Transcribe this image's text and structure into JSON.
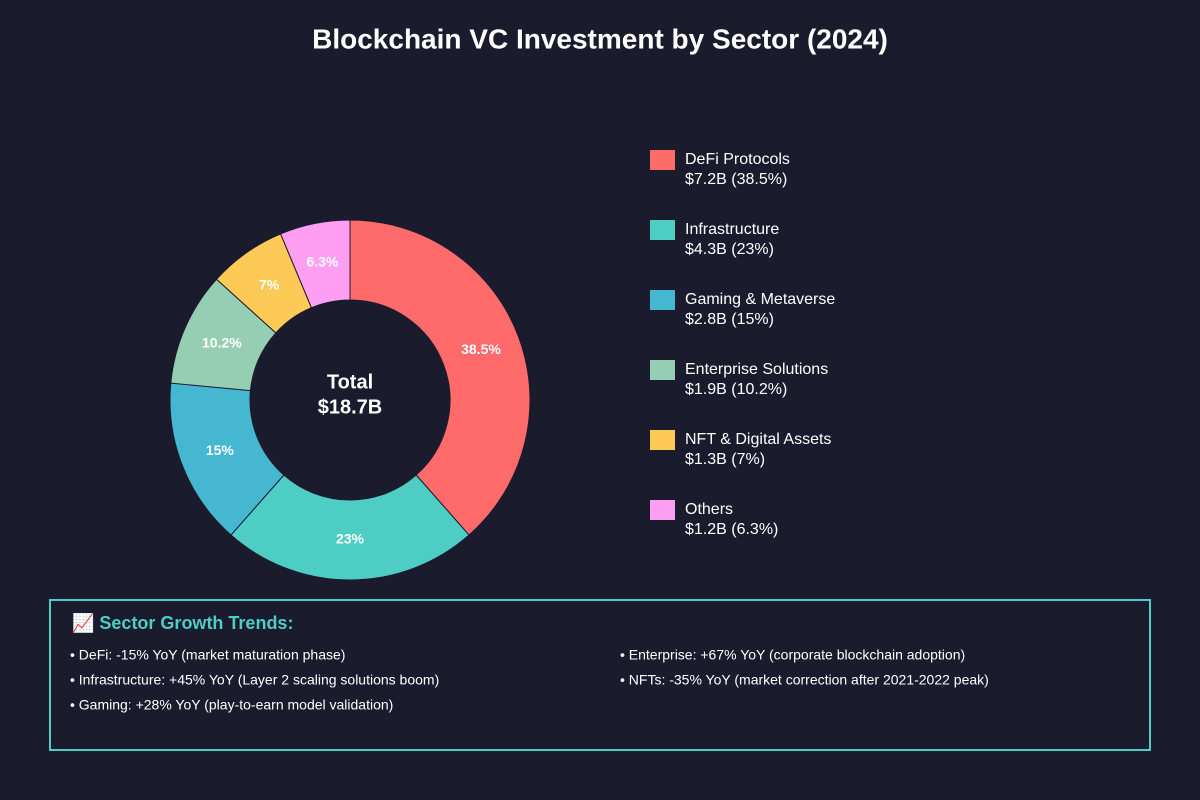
{
  "chart_data": {
    "type": "donut",
    "title": "Blockchain VC Investment by Sector (2024)",
    "categories": [
      "DeFi Protocols",
      "Infrastructure",
      "Gaming & Metaverse",
      "Enterprise Solutions",
      "NFT & Digital Assets",
      "Others"
    ],
    "values": [
      38.5,
      23,
      15,
      10.2,
      7,
      6.3
    ],
    "value_labels": [
      "38.5%",
      "23%",
      "15%",
      "10.2%",
      "7%",
      "6.3%"
    ],
    "legend_labels": [
      "$7.2B (38.5%)",
      "$4.3B (23%)",
      "$2.8B (15%)",
      "$1.9B (10.2%)",
      "$1.3B (7%)",
      "$1.2B (6.3%)"
    ],
    "colors": [
      "#ff6b6b",
      "#4ecdc4",
      "#45b7d1",
      "#96ceb4",
      "#feca57",
      "#ff9ff3"
    ],
    "center_label": [
      "Total",
      "$18.7B"
    ]
  },
  "trends": {
    "title": "📈 Sector Growth Trends:",
    "left": [
      "• DeFi: -15% YoY (market maturation phase)",
      "• Infrastructure: +45% YoY (Layer 2 scaling solutions boom)",
      "• Gaming: +28% YoY (play-to-earn model validation)"
    ],
    "right": [
      "• Enterprise: +67% YoY (corporate blockchain adoption)",
      "• NFTs: -35% YoY (market correction after 2021-2022 peak)"
    ]
  }
}
